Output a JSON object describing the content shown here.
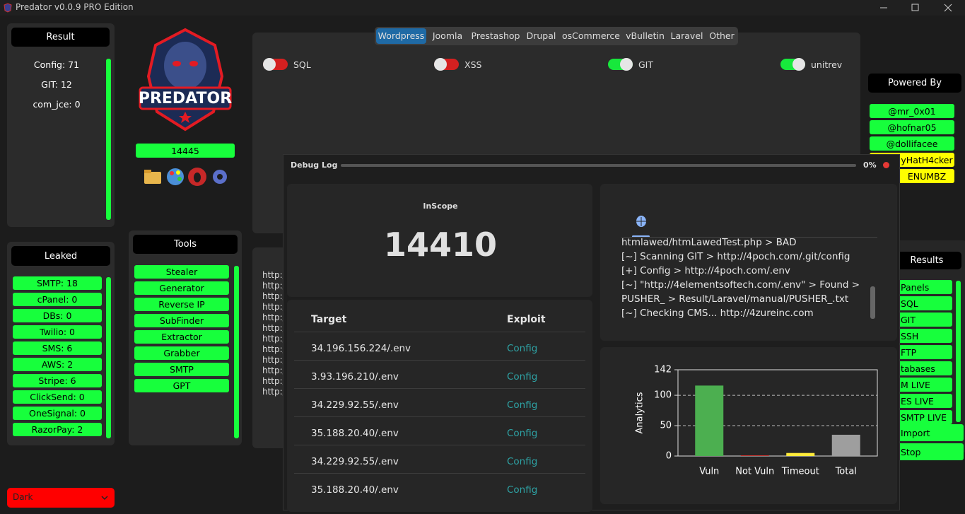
{
  "title_bar": {
    "title": "Predator v0.0.9 PRO Edition"
  },
  "result_panel": {
    "title": "Result",
    "items": [
      "Config: 71",
      "GIT: 12",
      "com_jce: 0"
    ]
  },
  "logo": {
    "text": "PREDATOR"
  },
  "counter": "14445",
  "leaked_panel": {
    "title": "Leaked",
    "items": [
      "SMTP: 18",
      "cPanel: 0",
      "DBs: 0",
      "Twilio: 0",
      "SMS: 6",
      "AWS: 2",
      "Stripe: 6",
      "ClickSend: 0",
      "OneSignal: 0",
      "RazorPay: 2"
    ]
  },
  "tools_panel": {
    "title": "Tools",
    "items": [
      "Stealer",
      "Generator",
      "Reverse IP",
      "SubFinder",
      "Extractor",
      "Grabber",
      "SMTP",
      "GPT"
    ]
  },
  "cms_tabs": [
    {
      "label": "Wordpress",
      "selected": true
    },
    {
      "label": "Joomla",
      "selected": false
    },
    {
      "label": "Prestashop",
      "selected": false
    },
    {
      "label": "Drupal",
      "selected": false
    },
    {
      "label": "osCommerce",
      "selected": false
    },
    {
      "label": "vBulletin",
      "selected": false
    },
    {
      "label": "Laravel",
      "selected": false
    },
    {
      "label": "Other",
      "selected": false
    }
  ],
  "toggles": [
    {
      "label": "SQL",
      "on": false
    },
    {
      "label": "XSS",
      "on": false
    },
    {
      "label": "GIT",
      "on": true
    },
    {
      "label": "unitrev",
      "on": true
    }
  ],
  "powered_by": {
    "title": "Powered By",
    "items": [
      {
        "label": "@mr_0x01",
        "color": "#17ff3c"
      },
      {
        "label": "@hofnar05",
        "color": "#17ff3c"
      },
      {
        "label": "@dollifacee",
        "color": "#17ff3c"
      },
      {
        "label": "yHatH4cker",
        "color": "#ffff00"
      },
      {
        "label": "ENUMBZ",
        "color": "#ffff00"
      }
    ]
  },
  "results_panel": {
    "title": "Results",
    "items": [
      "Panels",
      "SQL",
      "GIT",
      "SSH",
      "FTP",
      "tabases",
      "M LIVE",
      "ES LIVE",
      "SMTP LIVE"
    ],
    "buttons": [
      "Import",
      "Stop"
    ]
  },
  "url_list": [
    "http:/",
    "http:/",
    "http:/",
    "http:/",
    "http:/",
    "http:/",
    "http:/",
    "http:/",
    "http:/",
    "http:/",
    "http:/",
    "http:/"
  ],
  "theme_menu": "Dark",
  "debug_log": {
    "title": "Debug Log",
    "progress": "0%",
    "inscope_label": "InScope",
    "inscope": "14410",
    "table": {
      "headers": [
        "Target",
        "Exploit"
      ],
      "rows": [
        [
          "34.196.156.224/.env",
          "Config"
        ],
        [
          "3.93.196.210/.env",
          "Config"
        ],
        [
          "34.229.92.55/.env",
          "Config"
        ],
        [
          "35.188.20.40/.env",
          "Config"
        ],
        [
          "34.229.92.55/.env",
          "Config"
        ],
        [
          "35.188.20.40/.env",
          "Config"
        ]
      ]
    },
    "log": [
      "htmlawed/htmLawedTest.php >  BAD",
      "[~] Scanning GIT > http://4poch.com/.git/config",
      "[+] Config > http://4poch.com/.env",
      "[~] \"http://4elementsoftech.com/.env\" > Found >",
      "PUSHER_ > Result/Laravel/manual/PUSHER_.txt",
      "[~] Checking CMS... http://4zureinc.com"
    ]
  },
  "chart_data": {
    "type": "bar",
    "ylabel": "Analytics",
    "categories": [
      "Vuln",
      "Not Vuln",
      "Timeout",
      "Total"
    ],
    "values": [
      116,
      1,
      5,
      35
    ],
    "colors": [
      "#4caf50",
      "#e53935",
      "#ffeb3b",
      "#9e9e9e"
    ],
    "ylim": [
      0,
      142
    ],
    "yticks": [
      0,
      50,
      100,
      142
    ],
    "grid": true
  }
}
